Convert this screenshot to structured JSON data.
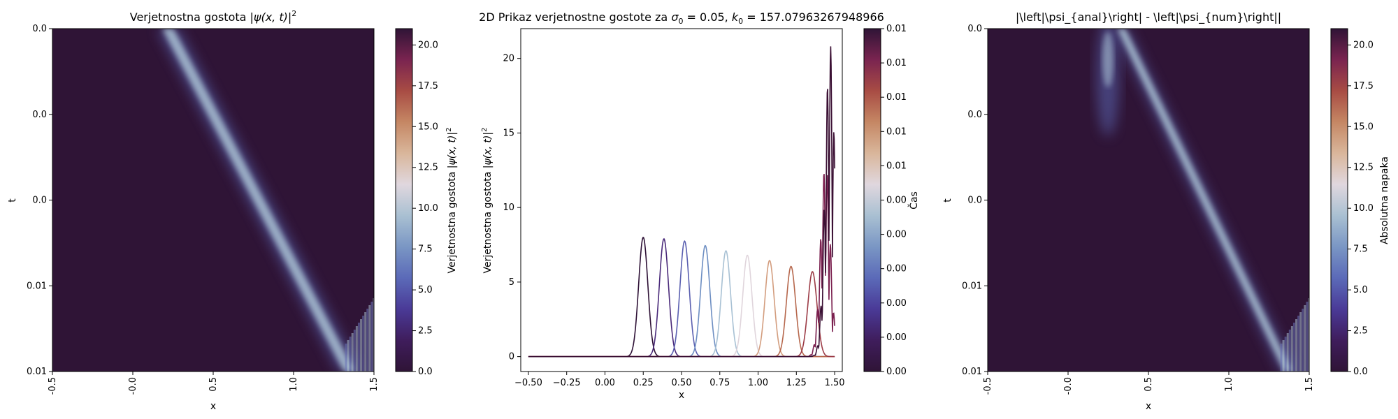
{
  "colormap": [
    "#2f1436",
    "#3f1d5c",
    "#4a3a97",
    "#5b6ab8",
    "#7a96c4",
    "#a9c0d2",
    "#e0d7de",
    "#d9b69b",
    "#c58764",
    "#a84c44",
    "#7a2450",
    "#2f1436"
  ],
  "figure": {
    "panels": [
      {
        "title_text": "Verjetnostna gostota |",
        "title_math": "ψ(x, t)",
        "title_tail": "|",
        "title_sup": "2",
        "xlabel": "x",
        "ylabel": "t",
        "xticks": [
          "-0.5",
          "-0.0",
          "0.5",
          "1.0",
          "1.5"
        ],
        "yticks": [
          "0.0",
          "0.0",
          "0.0",
          "0.01",
          "0.01"
        ],
        "colorbar_ticks": [
          "0.0",
          "2.5",
          "5.0",
          "7.5",
          "10.0",
          "12.5",
          "15.0",
          "17.5",
          "20.0"
        ],
        "colorbar_label_text": "Verjetnostna gostota |",
        "colorbar_label_math": "ψ(x, t)",
        "colorbar_label_tail": "|",
        "colorbar_label_sup": "2"
      },
      {
        "title_text": "2D Prikaz verjetnostne gostote za ",
        "title_sigma": "σ",
        "title_sigma_sub": "0",
        "title_mid": " = 0.05, ",
        "title_k": "k",
        "title_k_sub": "0",
        "title_tail": " = 157.07963267948966",
        "xlabel": "x",
        "ylabel_text": "Verjetnostna gostota |",
        "ylabel_math": "ψ(x, t)",
        "ylabel_tail": "|",
        "ylabel_sup": "2",
        "xticks": [
          "−0.50",
          "−0.25",
          "0.00",
          "0.25",
          "0.50",
          "0.75",
          "1.00",
          "1.25",
          "1.50"
        ],
        "yticks": [
          "0",
          "5",
          "10",
          "15",
          "20"
        ],
        "colorbar_ticks": [
          "0.00",
          "0.00",
          "0.00",
          "0.00",
          "0.00",
          "0.00",
          "0.01",
          "0.01",
          "0.01",
          "0.01",
          "0.01"
        ],
        "colorbar_label": "Čas"
      },
      {
        "title": "|\\left|\\psi_{anal}\\right| - \\left|\\psi_{num}\\right||",
        "xlabel": "x",
        "ylabel": "t",
        "xticks": [
          "-0.5",
          "-0.0",
          "0.5",
          "1.0",
          "1.5"
        ],
        "yticks": [
          "0.0",
          "0.0",
          "0.0",
          "0.01",
          "0.01"
        ],
        "colorbar_ticks": [
          "0.0",
          "2.5",
          "5.0",
          "7.5",
          "10.0",
          "12.5",
          "15.0",
          "17.5",
          "20.0"
        ],
        "colorbar_label": "Absolutna napaka"
      }
    ]
  },
  "chart_data": [
    {
      "type": "heatmap",
      "title": "Verjetnostna gostota |ψ(x, t)|²",
      "xlabel": "x",
      "ylabel": "t",
      "x_range": [
        -0.5,
        1.5
      ],
      "colorbar_range": [
        0,
        21
      ],
      "packet": {
        "x_start": 0.24,
        "x_end": 1.48,
        "peak_start": 8.0,
        "peak_end": 21.0
      }
    },
    {
      "type": "line",
      "title": "2D Prikaz verjetnostne gostote za σ0 = 0.05, k0 = 157.07963267948966",
      "xlabel": "x",
      "ylabel": "Verjetnostna gostota |ψ(x, t)|²",
      "xlim": [
        -0.55,
        1.55
      ],
      "ylim": [
        -1,
        22
      ],
      "x_range": [
        -0.5,
        1.5
      ],
      "sigma": 0.05,
      "series": [
        {
          "center": 0.25,
          "peak": 8.0,
          "color": "#2d1035"
        },
        {
          "center": 0.385,
          "peak": 7.9,
          "color": "#4a2a7a"
        },
        {
          "center": 0.52,
          "peak": 7.75,
          "color": "#5a5fb0"
        },
        {
          "center": 0.655,
          "peak": 7.45,
          "color": "#6d8ec2"
        },
        {
          "center": 0.79,
          "peak": 7.1,
          "color": "#a8c1d4"
        },
        {
          "center": 0.93,
          "peak": 6.8,
          "color": "#e0d5dc"
        },
        {
          "center": 1.075,
          "peak": 6.45,
          "color": "#d39d7e"
        },
        {
          "center": 1.215,
          "peak": 6.05,
          "color": "#b6674c"
        },
        {
          "center": 1.355,
          "peak": 5.7,
          "color": "#9c3b46"
        },
        {
          "center": 1.44,
          "peak": 13.0,
          "color": "#7a1f4e",
          "osc": true
        },
        {
          "center": 1.47,
          "peak": 21.0,
          "color": "#3a0f33",
          "osc": true
        }
      ],
      "colorbar_range": [
        0.0,
        0.01
      ]
    },
    {
      "type": "heatmap",
      "title": "|\\left|\\psi_{anal}\\right| - \\left|\\psi_{num}\\right||",
      "xlabel": "x",
      "ylabel": "t",
      "x_range": [
        -0.5,
        1.5
      ],
      "colorbar_range": [
        0,
        21
      ],
      "colorbar_label": "Absolutna napaka"
    }
  ]
}
